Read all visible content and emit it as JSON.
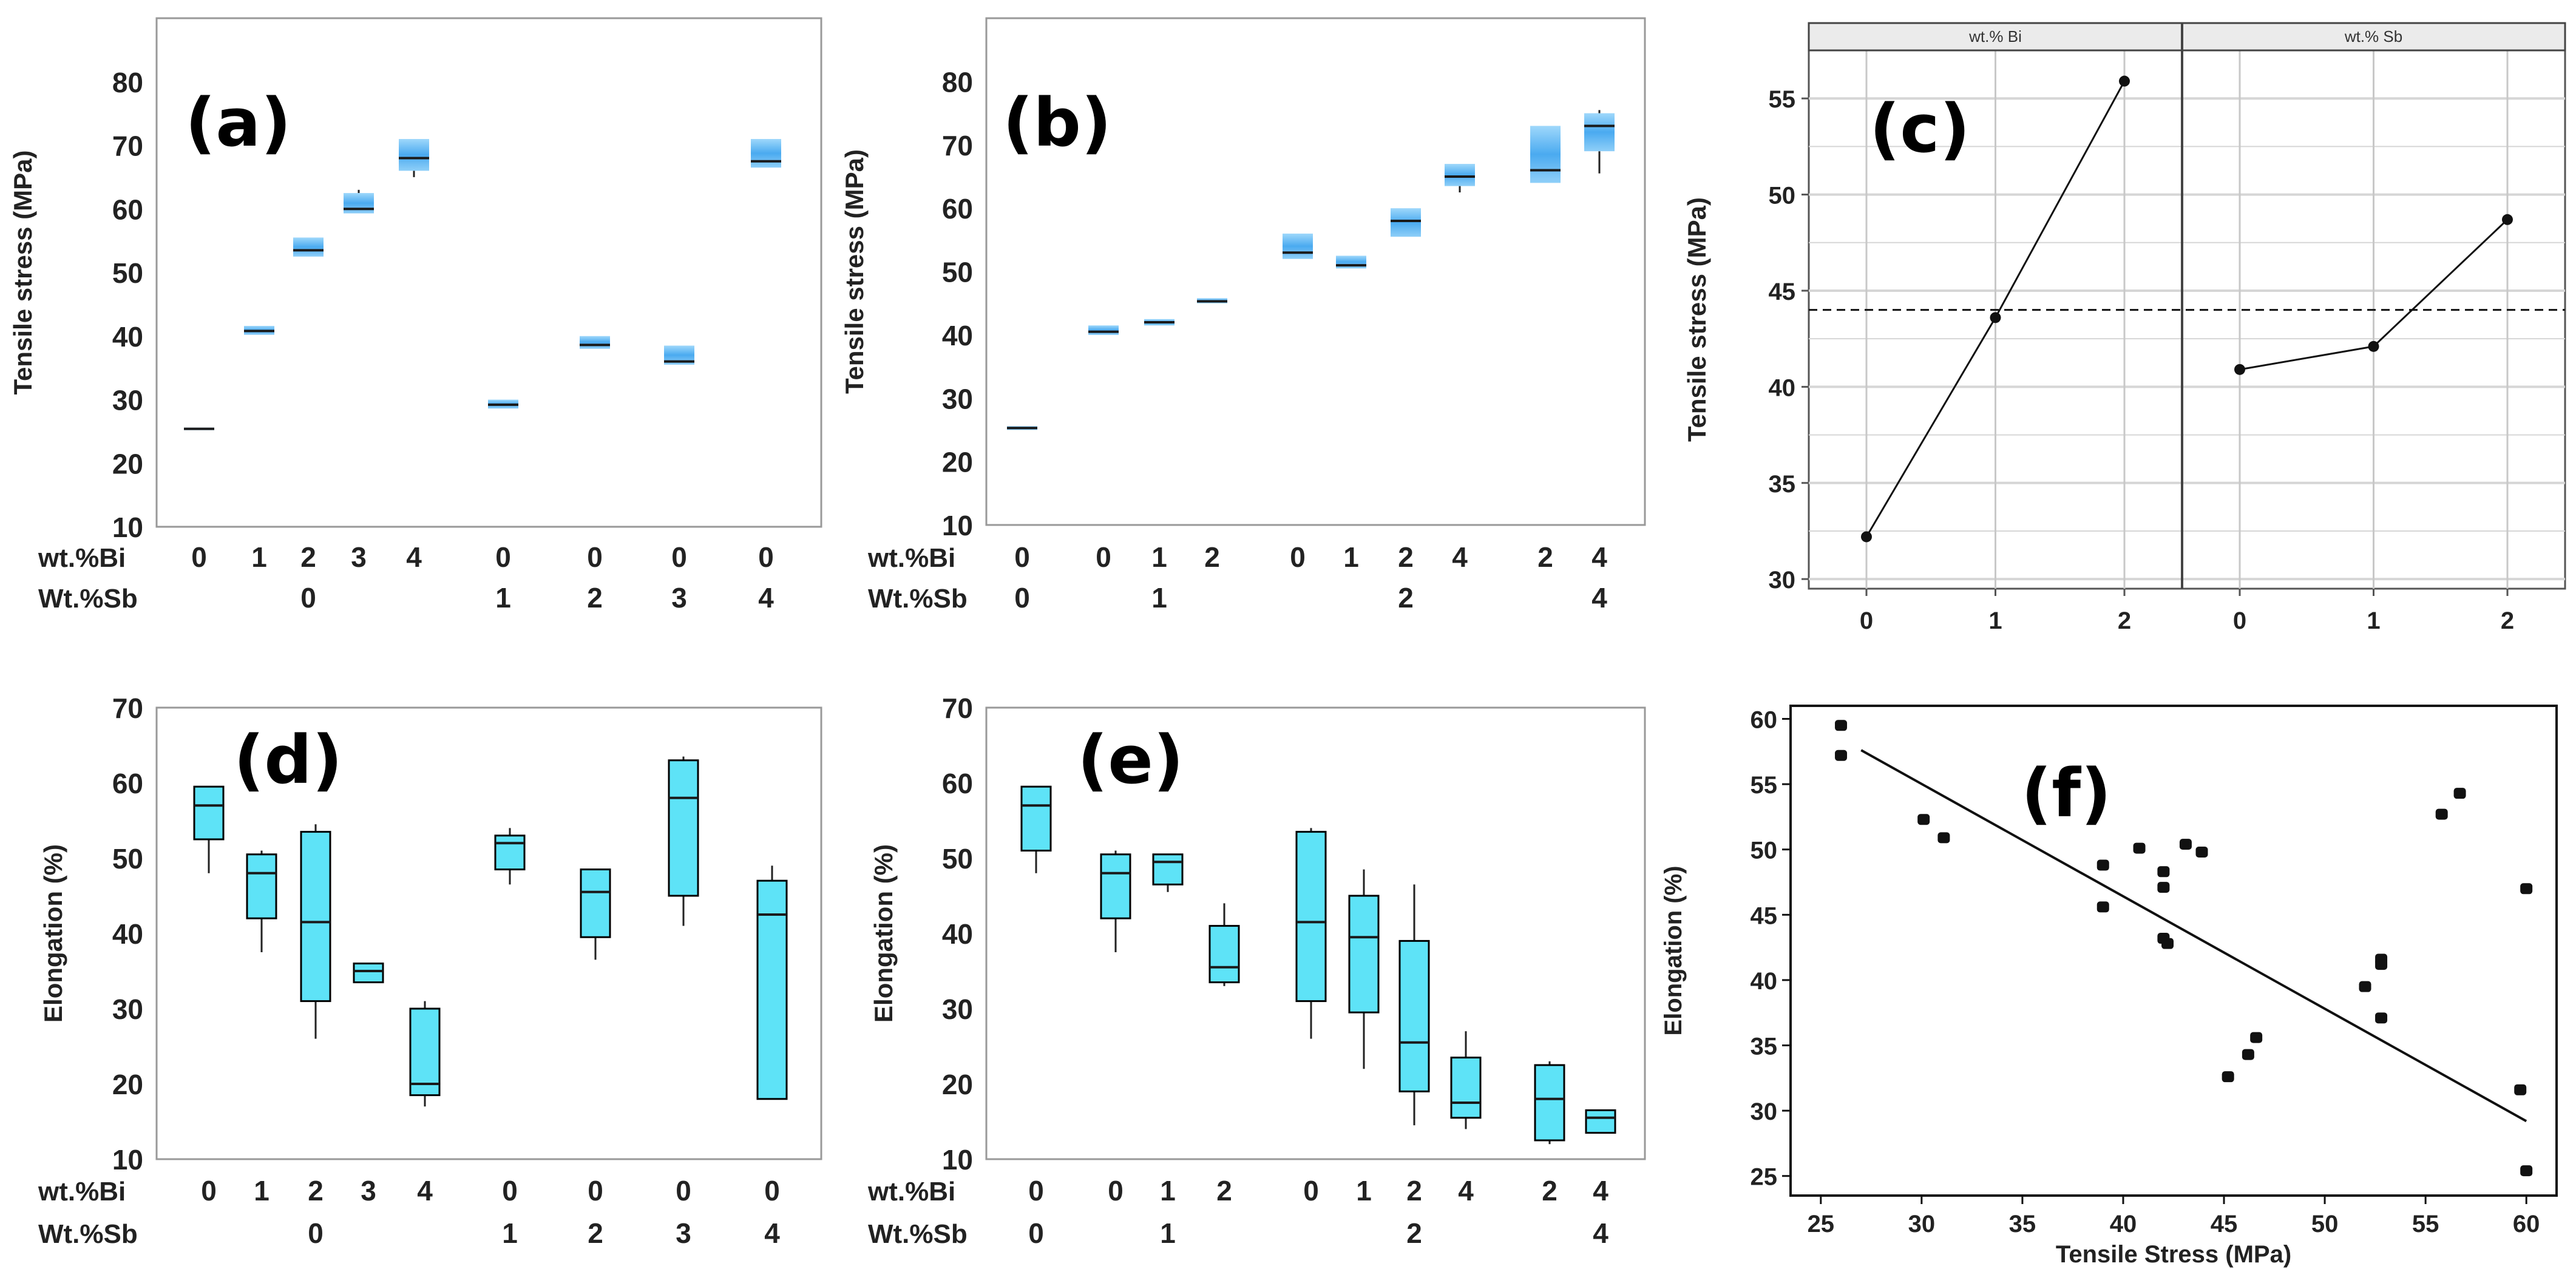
{
  "colors": {
    "box_blue": "#5cb8f0",
    "box_cyan": "#5ee3f7",
    "frame": "#999999",
    "strip_bg": "#ebebeb",
    "ink": "#111111"
  },
  "chart_data": [
    {
      "id": "a",
      "type": "box",
      "panel_label": "(a)",
      "ylabel": "Tensile stress (MPa)",
      "ylim": [
        10,
        90
      ],
      "yticks": [
        10,
        20,
        30,
        40,
        50,
        60,
        70,
        80
      ],
      "row1_label": "wt.%Bi",
      "row2_label": "Wt.%Sb",
      "categories": [
        {
          "bi": "0",
          "sb": "",
          "q1": 25.2,
          "median": 25.4,
          "q3": 25.6
        },
        {
          "bi": "1",
          "sb": "",
          "q1": 40.2,
          "median": 40.8,
          "q3": 41.6
        },
        {
          "bi": "2",
          "sb": "0",
          "q1": 52.5,
          "median": 53.5,
          "q3": 55.5
        },
        {
          "bi": "3",
          "sb": "",
          "q1": 59.3,
          "median": 60.0,
          "q3": 62.5,
          "whisker_high": 63
        },
        {
          "bi": "4",
          "sb": "",
          "q1": 66.0,
          "median": 68.0,
          "q3": 71.0,
          "whisker_low": 65
        },
        {
          "bi": "0",
          "sb": "1",
          "q1": 28.6,
          "median": 29.2,
          "q3": 30.0
        },
        {
          "bi": "0",
          "sb": "2",
          "q1": 38.0,
          "median": 38.6,
          "q3": 40.0
        },
        {
          "bi": "0",
          "sb": "3",
          "q1": 35.5,
          "median": 36.0,
          "q3": 38.5
        },
        {
          "bi": "0",
          "sb": "4",
          "q1": 66.5,
          "median": 67.5,
          "q3": 71.0
        }
      ]
    },
    {
      "id": "b",
      "type": "box",
      "panel_label": "(b)",
      "ylabel": "Tensile stress (MPa)",
      "ylim": [
        10,
        90
      ],
      "yticks": [
        10,
        20,
        30,
        40,
        50,
        60,
        70,
        80
      ],
      "row1_label": "wt.%Bi",
      "row2_label": "Wt.%Sb",
      "categories": [
        {
          "bi": "0",
          "sb": "0",
          "q1": 25.0,
          "median": 25.3,
          "q3": 25.6
        },
        {
          "bi": "0",
          "sb": "",
          "q1": 40.0,
          "median": 40.5,
          "q3": 41.5
        },
        {
          "bi": "1",
          "sb": "1",
          "q1": 41.5,
          "median": 42.0,
          "q3": 42.5
        },
        {
          "bi": "2",
          "sb": "",
          "q1": 45.0,
          "median": 45.3,
          "q3": 45.8
        },
        {
          "bi": "0",
          "sb": "",
          "q1": 52.0,
          "median": 53.0,
          "q3": 56.0
        },
        {
          "bi": "1",
          "sb": "",
          "q1": 50.5,
          "median": 51.0,
          "q3": 52.5
        },
        {
          "bi": "2",
          "sb": "2",
          "q1": 55.5,
          "median": 58.0,
          "q3": 60.0
        },
        {
          "bi": "4",
          "sb": "",
          "q1": 63.5,
          "median": 65.0,
          "q3": 67.0,
          "whisker_low": 62.5
        },
        {
          "bi": "2",
          "sb": "",
          "q1": 64.0,
          "median": 66.0,
          "q3": 73.0
        },
        {
          "bi": "4",
          "sb": "4",
          "q1": 69.0,
          "median": 73.0,
          "q3": 75.0,
          "whisker_low": 65.5,
          "whisker_high": 75.5
        }
      ]
    },
    {
      "id": "c",
      "type": "line",
      "panel_label": "(c)",
      "ylabel": "Tensile stress (MPa)",
      "ylim": [
        29.5,
        57.5
      ],
      "yticks": [
        30,
        35,
        40,
        45,
        50,
        55
      ],
      "reference_line": 44,
      "facets": [
        {
          "title": "wt.% Bi",
          "x": [
            0,
            1,
            2
          ],
          "y": [
            32.2,
            43.6,
            55.9
          ]
        },
        {
          "title": "wt.% Sb",
          "x": [
            0,
            1,
            2
          ],
          "y": [
            40.9,
            42.1,
            48.7
          ]
        }
      ],
      "xticks": [
        "0",
        "1",
        "2"
      ]
    },
    {
      "id": "d",
      "type": "box",
      "panel_label": "(d)",
      "ylabel": "Elongation (%)",
      "ylim": [
        10,
        70
      ],
      "yticks": [
        10,
        20,
        30,
        40,
        50,
        60,
        70
      ],
      "row1_label": "wt.%Bi",
      "row2_label": "Wt.%Sb",
      "categories": [
        {
          "bi": "0",
          "sb": "",
          "q1": 52.5,
          "median": 57.0,
          "q3": 59.5,
          "whisker_low": 48
        },
        {
          "bi": "1",
          "sb": "",
          "q1": 42.0,
          "median": 48.0,
          "q3": 50.5,
          "whisker_low": 37.5,
          "whisker_high": 51
        },
        {
          "bi": "2",
          "sb": "0",
          "q1": 31.0,
          "median": 41.5,
          "q3": 53.5,
          "whisker_low": 26,
          "whisker_high": 54.5
        },
        {
          "bi": "3",
          "sb": "",
          "q1": 33.5,
          "median": 35.0,
          "q3": 36.0
        },
        {
          "bi": "4",
          "sb": "",
          "q1": 18.5,
          "median": 20.0,
          "q3": 30.0,
          "whisker_low": 17,
          "whisker_high": 31
        },
        {
          "bi": "0",
          "sb": "1",
          "q1": 48.5,
          "median": 52.0,
          "q3": 53.0,
          "whisker_low": 46.5,
          "whisker_high": 54
        },
        {
          "bi": "0",
          "sb": "2",
          "q1": 39.5,
          "median": 45.5,
          "q3": 48.5,
          "whisker_low": 36.5
        },
        {
          "bi": "0",
          "sb": "3",
          "q1": 45.0,
          "median": 58.0,
          "q3": 63.0,
          "whisker_low": 41,
          "whisker_high": 63.5
        },
        {
          "bi": "0",
          "sb": "4",
          "q1": 18.0,
          "median": 42.5,
          "q3": 47.0,
          "whisker_high": 49
        }
      ]
    },
    {
      "id": "e",
      "type": "box",
      "panel_label": "(e)",
      "ylabel": "Elongation (%)",
      "ylim": [
        10,
        70
      ],
      "yticks": [
        10,
        20,
        30,
        40,
        50,
        60,
        70
      ],
      "row1_label": "wt.%Bi",
      "row2_label": "Wt.%Sb",
      "categories": [
        {
          "bi": "0",
          "sb": "0",
          "q1": 51.0,
          "median": 57.0,
          "q3": 59.5,
          "whisker_low": 48
        },
        {
          "bi": "0",
          "sb": "",
          "q1": 42.0,
          "median": 48.0,
          "q3": 50.5,
          "whisker_low": 37.5,
          "whisker_high": 51
        },
        {
          "bi": "1",
          "sb": "1",
          "q1": 46.5,
          "median": 49.5,
          "q3": 50.5,
          "whisker_low": 45.5
        },
        {
          "bi": "2",
          "sb": "",
          "q1": 33.5,
          "median": 35.5,
          "q3": 41.0,
          "whisker_low": 33,
          "whisker_high": 44
        },
        {
          "bi": "0",
          "sb": "",
          "q1": 31.0,
          "median": 41.5,
          "q3": 53.5,
          "whisker_low": 26,
          "whisker_high": 54
        },
        {
          "bi": "1",
          "sb": "",
          "q1": 29.5,
          "median": 39.5,
          "q3": 45.0,
          "whisker_low": 22,
          "whisker_high": 48.5
        },
        {
          "bi": "2",
          "sb": "2",
          "q1": 19.0,
          "median": 25.5,
          "q3": 39.0,
          "whisker_low": 14.5,
          "whisker_high": 46.5
        },
        {
          "bi": "4",
          "sb": "",
          "q1": 15.5,
          "median": 17.5,
          "q3": 23.5,
          "whisker_low": 14,
          "whisker_high": 27
        },
        {
          "bi": "2",
          "sb": "",
          "q1": 12.5,
          "median": 18.0,
          "q3": 22.5,
          "whisker_low": 12,
          "whisker_high": 23
        },
        {
          "bi": "4",
          "sb": "4",
          "q1": 13.5,
          "median": 15.5,
          "q3": 16.5
        }
      ]
    },
    {
      "id": "f",
      "type": "scatter",
      "panel_label": "(f)",
      "xlabel": "Tensile Stress (MPa)",
      "ylabel": "Elongation (%)",
      "xlim": [
        23.5,
        61.5
      ],
      "ylim": [
        23.5,
        61
      ],
      "xticks": [
        25,
        30,
        35,
        40,
        45,
        50,
        55,
        60
      ],
      "yticks": [
        25,
        30,
        35,
        40,
        45,
        50,
        55,
        60
      ],
      "points": [
        [
          26,
          59.5
        ],
        [
          26,
          57.2
        ],
        [
          30.1,
          52.3
        ],
        [
          31.1,
          50.9
        ],
        [
          39,
          48.8
        ],
        [
          39,
          45.6
        ],
        [
          40.8,
          50.1
        ],
        [
          42,
          48.3
        ],
        [
          42,
          47.1
        ],
        [
          42,
          43.2
        ],
        [
          42.2,
          42.8
        ],
        [
          43.1,
          50.4
        ],
        [
          43.9,
          49.8
        ],
        [
          45.2,
          32.6
        ],
        [
          46.2,
          34.3
        ],
        [
          46.6,
          35.6
        ],
        [
          52,
          39.5
        ],
        [
          52.8,
          41.6
        ],
        [
          52.8,
          41.2
        ],
        [
          52.8,
          37.1
        ],
        [
          55.8,
          52.7
        ],
        [
          56.7,
          54.3
        ],
        [
          60,
          47
        ],
        [
          59.7,
          31.6
        ],
        [
          60,
          25.4
        ]
      ],
      "fit_line": {
        "x": [
          27,
          60
        ],
        "y": [
          57.6,
          29.2
        ]
      }
    }
  ]
}
